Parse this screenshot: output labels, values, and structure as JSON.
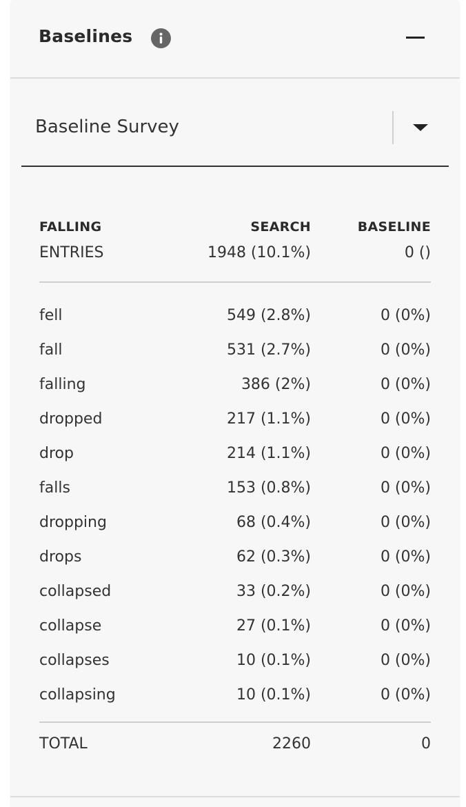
{
  "panel": {
    "title": "Baselines",
    "icons": {
      "info": "info-icon",
      "collapse": "minus-icon",
      "dropdown": "caret-down-icon"
    }
  },
  "select": {
    "value": "Baseline Survey"
  },
  "table": {
    "headers": {
      "term": "FALLING",
      "search": "SEARCH",
      "baseline": "BASELINE"
    },
    "entries": {
      "label": "ENTRIES",
      "search": "1948 (10.1%)",
      "baseline": "0 ()"
    },
    "rows": [
      {
        "term": "fell",
        "search": "549 (2.8%)",
        "baseline": "0 (0%)"
      },
      {
        "term": "fall",
        "search": "531 (2.7%)",
        "baseline": "0 (0%)"
      },
      {
        "term": "falling",
        "search": "386 (2%)",
        "baseline": "0 (0%)"
      },
      {
        "term": "dropped",
        "search": "217 (1.1%)",
        "baseline": "0 (0%)"
      },
      {
        "term": "drop",
        "search": "214 (1.1%)",
        "baseline": "0 (0%)"
      },
      {
        "term": "falls",
        "search": "153 (0.8%)",
        "baseline": "0 (0%)"
      },
      {
        "term": "dropping",
        "search": "68 (0.4%)",
        "baseline": "0 (0%)"
      },
      {
        "term": "drops",
        "search": "62 (0.3%)",
        "baseline": "0 (0%)"
      },
      {
        "term": "collapsed",
        "search": "33 (0.2%)",
        "baseline": "0 (0%)"
      },
      {
        "term": "collapse",
        "search": "27 (0.1%)",
        "baseline": "0 (0%)"
      },
      {
        "term": "collapses",
        "search": "10 (0.1%)",
        "baseline": "0 (0%)"
      },
      {
        "term": "collapsing",
        "search": "10 (0.1%)",
        "baseline": "0 (0%)"
      }
    ],
    "total": {
      "label": "TOTAL",
      "search": "2260",
      "baseline": "0"
    }
  }
}
